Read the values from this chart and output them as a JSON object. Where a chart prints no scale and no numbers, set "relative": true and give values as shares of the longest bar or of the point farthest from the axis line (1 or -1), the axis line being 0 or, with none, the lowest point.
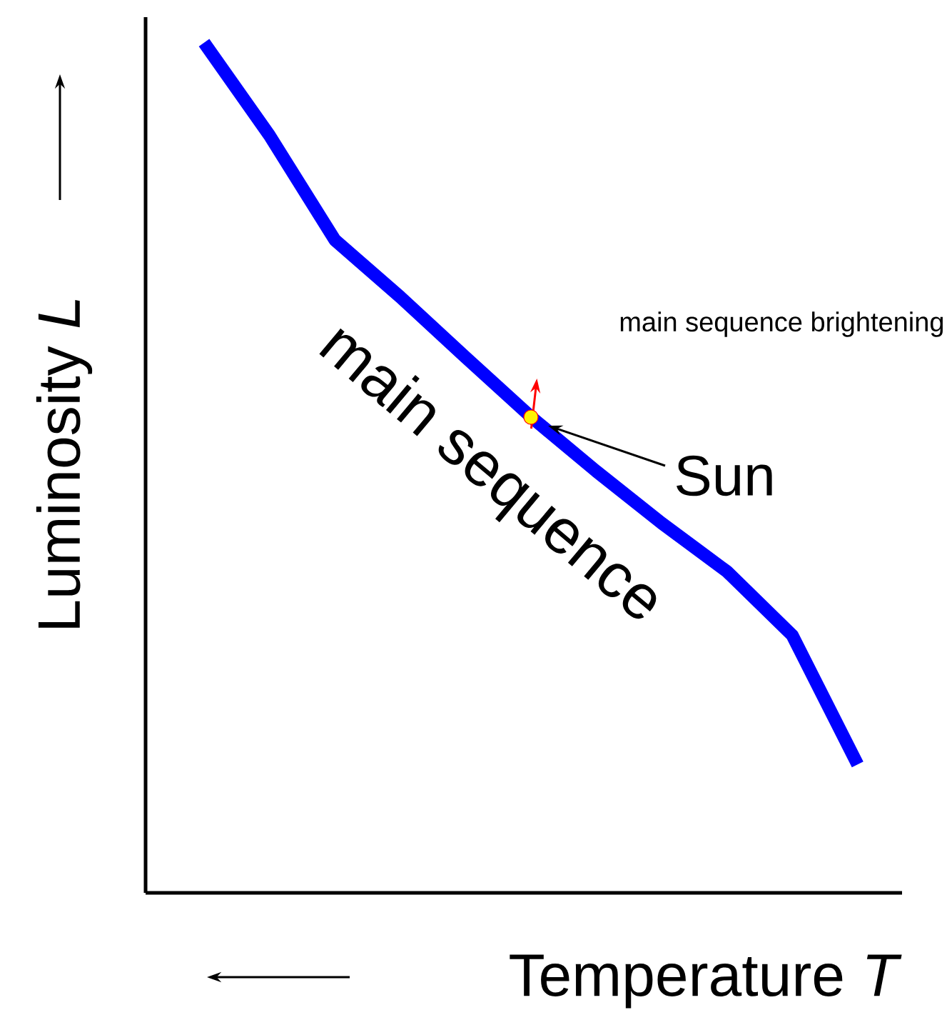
{
  "chart_data": {
    "type": "line",
    "relative": true,
    "xlabel": "Temperature *T*",
    "ylabel": "Luminosity *L*",
    "categories": [
      null,
      null,
      null,
      null,
      null,
      null,
      null,
      null,
      null,
      null,
      null
    ],
    "series": [
      {
        "name": "main sequence",
        "color": "#0000ff",
        "values": [
          1,
          0.891,
          0.768,
          0.701,
          0.63,
          0.56,
          0.496,
          0.435,
          0.378,
          0.303,
          0.151
        ]
      }
    ],
    "annotations": [
      "main sequence brightening",
      "Sun"
    ]
  }
}
